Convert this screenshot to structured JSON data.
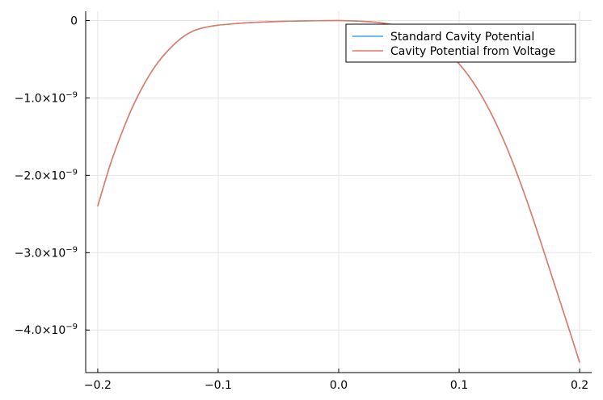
{
  "chart_data": {
    "type": "line",
    "title": "",
    "xlabel": "",
    "ylabel": "",
    "xlim": [
      -0.21,
      0.21
    ],
    "ylim": [
      -4.55e-09,
      1.2e-10
    ],
    "grid": true,
    "legend_position": "top-right",
    "x_ticks": [
      {
        "value": -0.2,
        "label": "−0.2"
      },
      {
        "value": -0.1,
        "label": "−0.1"
      },
      {
        "value": 0.0,
        "label": "0.0"
      },
      {
        "value": 0.1,
        "label": "0.1"
      },
      {
        "value": 0.2,
        "label": "0.2"
      }
    ],
    "y_ticks": [
      {
        "value": 0,
        "mantissa": "0",
        "exponent": ""
      },
      {
        "value": -1e-09,
        "mantissa": "−1.0×10",
        "exponent": "−9"
      },
      {
        "value": -2e-09,
        "mantissa": "−2.0×10",
        "exponent": "−9"
      },
      {
        "value": -3e-09,
        "mantissa": "−3.0×10",
        "exponent": "−9"
      },
      {
        "value": -4e-09,
        "mantissa": "−4.0×10",
        "exponent": "−9"
      }
    ],
    "x": [
      -0.2,
      -0.19,
      -0.18,
      -0.17,
      -0.16,
      -0.15,
      -0.14,
      -0.13,
      -0.12,
      -0.11,
      -0.1,
      -0.09,
      -0.08,
      -0.07,
      -0.06,
      -0.05,
      -0.04,
      -0.03,
      -0.02,
      -0.01,
      0.0,
      0.01,
      0.02,
      0.03,
      0.04,
      0.05,
      0.06,
      0.07,
      0.08,
      0.09,
      0.1,
      0.11,
      0.12,
      0.13,
      0.14,
      0.15,
      0.16,
      0.17,
      0.18,
      0.19,
      0.2
    ],
    "series": [
      {
        "name": "Standard Cavity Potential",
        "color": "#3da5e5",
        "values": [
          -2.4e-09,
          -1.88e-09,
          -1.45e-09,
          -1.08e-09,
          -7.8e-10,
          -5.4e-10,
          -3.6e-10,
          -2.2e-10,
          -1.3e-10,
          -8.5e-11,
          -6e-11,
          -4.5e-11,
          -3.3e-11,
          -2.4e-11,
          -1.7e-11,
          -1.2e-11,
          -8e-12,
          -5e-12,
          -3e-12,
          -1e-12,
          0.0,
          -4e-12,
          -1e-11,
          -2e-11,
          -4e-11,
          -7e-11,
          -1.1e-10,
          -1.7e-10,
          -2.6e-10,
          -4e-10,
          -5.6e-10,
          -7.6e-10,
          -1.01e-09,
          -1.31e-09,
          -1.66e-09,
          -2.06e-09,
          -2.5e-09,
          -2.97e-09,
          -3.45e-09,
          -3.93e-09,
          -4.42e-09
        ]
      },
      {
        "name": "Cavity Potential from Voltage",
        "color": "#e8775d",
        "values": [
          -2.4e-09,
          -1.88e-09,
          -1.45e-09,
          -1.08e-09,
          -7.8e-10,
          -5.4e-10,
          -3.6e-10,
          -2.2e-10,
          -1.3e-10,
          -8.5e-11,
          -6e-11,
          -4.5e-11,
          -3.3e-11,
          -2.4e-11,
          -1.7e-11,
          -1.2e-11,
          -8e-12,
          -5e-12,
          -3e-12,
          -1e-12,
          0.0,
          -4e-12,
          -1e-11,
          -2e-11,
          -4e-11,
          -7e-11,
          -1.1e-10,
          -1.7e-10,
          -2.6e-10,
          -4e-10,
          -5.6e-10,
          -7.6e-10,
          -1.01e-09,
          -1.31e-09,
          -1.66e-09,
          -2.06e-09,
          -2.5e-09,
          -2.97e-09,
          -3.45e-09,
          -3.93e-09,
          -4.42e-09
        ]
      }
    ]
  }
}
